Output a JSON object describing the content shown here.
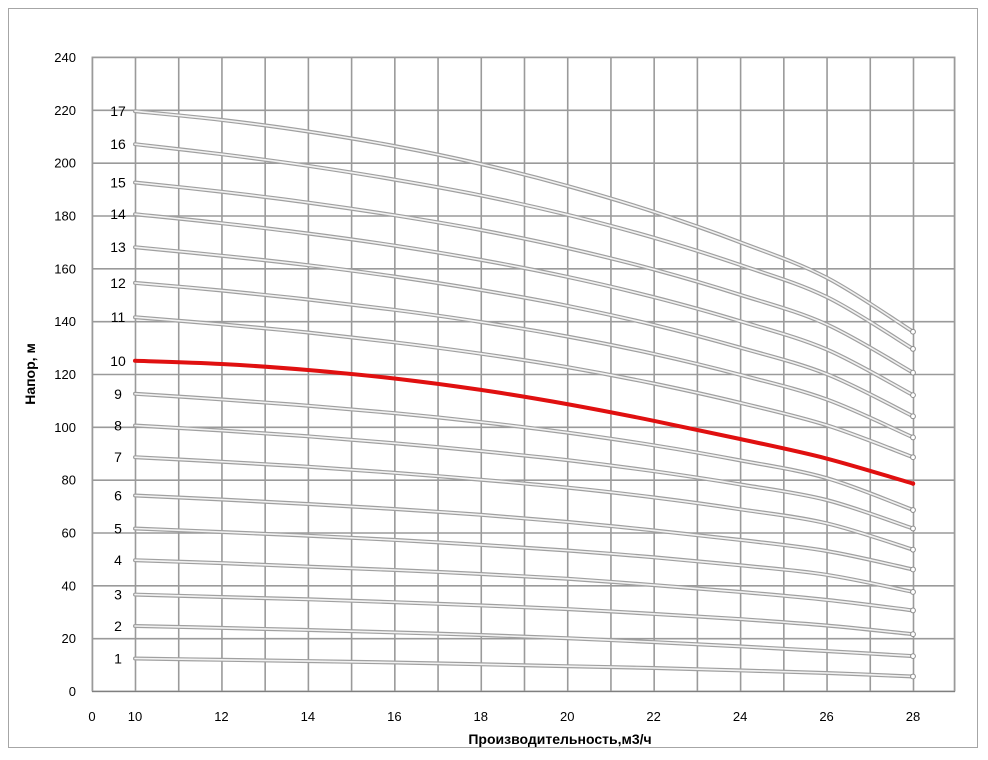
{
  "chart_data": {
    "type": "line",
    "title": "",
    "xlabel": "Производительность,м3/ч",
    "ylabel": "Напор, м",
    "xlim": [
      0,
      28
    ],
    "ylim": [
      0,
      240
    ],
    "x_ticks": [
      "0",
      "10",
      "12",
      "14",
      "16",
      "18",
      "20",
      "22",
      "24",
      "26",
      "28"
    ],
    "y_ticks": [
      "0",
      "20",
      "40",
      "60",
      "80",
      "100",
      "120",
      "140",
      "160",
      "180",
      "200",
      "220",
      "240"
    ],
    "grid": true,
    "highlight_color": "#e01010",
    "curve_color": "#a0a0a0",
    "x": [
      10,
      12,
      14,
      16,
      18,
      20,
      22,
      24,
      26,
      28
    ],
    "series": [
      {
        "name": "1",
        "values": [
          12.3,
          11.8,
          11.3,
          10.8,
          10.1,
          9.4,
          8.7,
          7.8,
          6.8,
          5.5
        ]
      },
      {
        "name": "2",
        "values": [
          24.6,
          23.9,
          23.1,
          22.2,
          21.2,
          20.0,
          18.5,
          16.9,
          15.1,
          13.2
        ]
      },
      {
        "name": "3",
        "values": [
          36.5,
          35.6,
          34.7,
          33.6,
          32.4,
          31.0,
          29.2,
          27.2,
          24.8,
          21.5
        ]
      },
      {
        "name": "4",
        "values": [
          49.5,
          48.4,
          47.1,
          45.8,
          44.3,
          42.5,
          40.1,
          37.5,
          34.5,
          30.5
        ]
      },
      {
        "name": "5",
        "values": [
          61.5,
          60.2,
          58.8,
          57.2,
          55.3,
          53.2,
          50.6,
          47.6,
          44.0,
          37.5
        ]
      },
      {
        "name": "6",
        "values": [
          74.0,
          72.5,
          70.8,
          68.9,
          66.7,
          64.0,
          60.8,
          57.2,
          53.0,
          46.0
        ]
      },
      {
        "name": "7",
        "values": [
          88.5,
          86.8,
          84.9,
          82.6,
          80.0,
          77.0,
          73.3,
          68.8,
          63.5,
          53.5
        ]
      },
      {
        "name": "8",
        "values": [
          100.5,
          98.6,
          96.4,
          93.8,
          90.8,
          87.4,
          83.2,
          78.2,
          72.3,
          61.5
        ]
      },
      {
        "name": "9",
        "values": [
          112.5,
          110.4,
          108.0,
          105.2,
          101.8,
          97.8,
          93.0,
          87.3,
          80.6,
          68.5
        ]
      },
      {
        "name": "10",
        "values": [
          125.0,
          123.8,
          121.5,
          118.3,
          114.0,
          108.6,
          102.3,
          95.4,
          88.0,
          78.5
        ],
        "highlight": true
      },
      {
        "name": "11",
        "values": [
          141.5,
          138.8,
          135.7,
          132.0,
          127.7,
          122.6,
          116.4,
          109.1,
          100.6,
          88.5
        ]
      },
      {
        "name": "12",
        "values": [
          154.5,
          151.6,
          148.2,
          144.3,
          139.7,
          134.2,
          127.6,
          119.7,
          110.4,
          96.0
        ]
      },
      {
        "name": "13",
        "values": [
          168.0,
          164.8,
          161.2,
          156.9,
          151.8,
          145.8,
          138.6,
          130.0,
          120.0,
          104.0
        ]
      },
      {
        "name": "14",
        "values": [
          180.5,
          177.1,
          173.2,
          168.6,
          163.2,
          156.8,
          149.1,
          140.0,
          129.3,
          112.0
        ]
      },
      {
        "name": "15",
        "values": [
          192.5,
          189.0,
          184.9,
          180.1,
          174.5,
          167.7,
          159.6,
          150.0,
          138.8,
          120.5
        ]
      },
      {
        "name": "16",
        "values": [
          207.0,
          203.2,
          198.8,
          193.6,
          187.6,
          180.3,
          171.6,
          161.3,
          149.2,
          129.5
        ]
      },
      {
        "name": "17",
        "values": [
          219.5,
          216.2,
          211.8,
          206.3,
          199.5,
          191.2,
          181.4,
          169.9,
          156.5,
          136.0
        ]
      }
    ]
  }
}
